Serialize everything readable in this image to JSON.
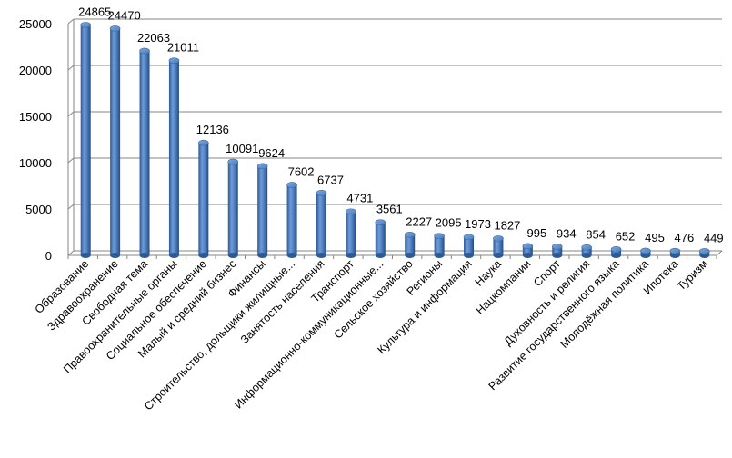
{
  "chart_data": {
    "type": "bar",
    "title": "",
    "xlabel": "",
    "ylabel": "",
    "ylim": [
      0,
      25000
    ],
    "yticks": [
      "0",
      "5000",
      "10000",
      "15000",
      "20000",
      "25000"
    ],
    "grid": true,
    "legend": "none",
    "bar_color": "#4a7ebb",
    "categories": [
      "Образование",
      "Здравоохранение",
      "Свободная тема",
      "Правоохранительные органы",
      "Социальное обеспечение",
      "Малый и средний бизнес",
      "Финансы",
      "Строительство, дольщики жилищные...",
      "Занятость населения",
      "Транспорт",
      "Информационно-коммуникационные...",
      "Сельское хозяйство",
      "Регионы",
      "Культура и информация",
      "Наука",
      "Нацкомпании",
      "Спорт",
      "Духовность и религия",
      "Развитие государственного языка",
      "Молодёжная политика",
      "Ипотека",
      "Туризм"
    ],
    "values": [
      24865,
      24470,
      22063,
      21011,
      12136,
      10091,
      9624,
      7602,
      6737,
      4731,
      3561,
      2227,
      2095,
      1973,
      1827,
      995,
      934,
      854,
      652,
      495,
      476,
      449
    ],
    "data_labels": [
      "24865",
      "24470",
      "22063",
      "21011",
      "12136",
      "10091",
      "9624",
      "7602",
      "6737",
      "4731",
      "3561",
      "2227",
      "2095",
      "1973",
      "1827",
      "995",
      "934",
      "854",
      "652",
      "495",
      "476",
      "449"
    ]
  }
}
